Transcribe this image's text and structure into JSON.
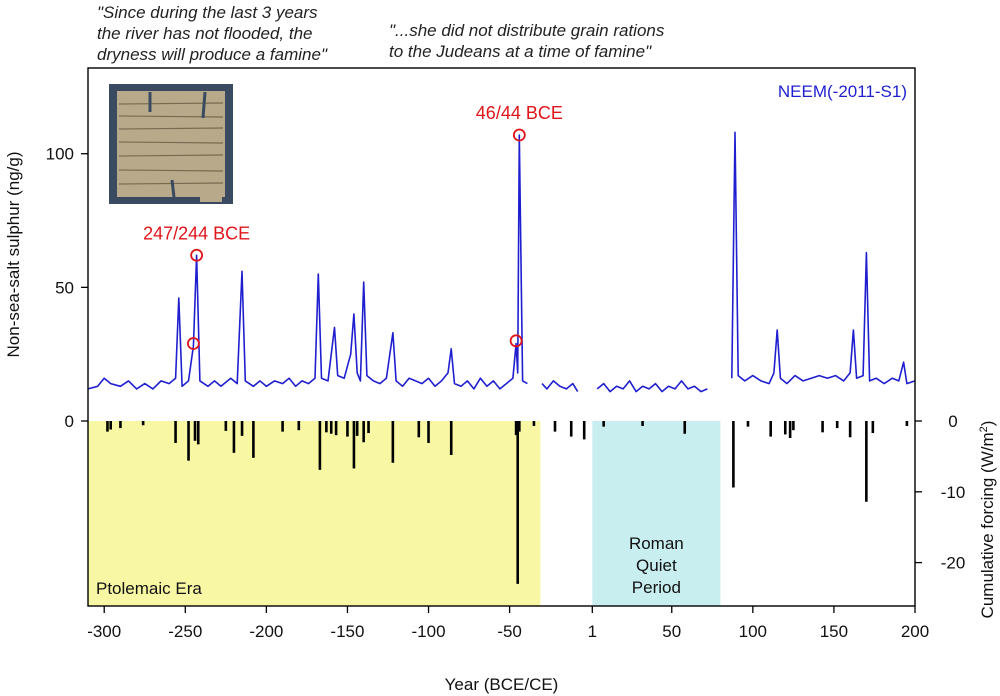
{
  "quotes": {
    "left": "\"Since during the last 3 years\nthe river has not flooded, the\ndryness will produce a famine\"",
    "right": "\"...she did not distribute grain rations\nto the Judeans at a time of famine\""
  },
  "colors": {
    "series": "#1f1fd0",
    "annotation": "#e0151a",
    "ptolemaic": "#f8f7a3",
    "roman": "#c8eef0",
    "forcing": "#000000",
    "papyrus": "#b7a98a"
  },
  "chart_data": [
    {
      "type": "line",
      "ylabel": "Non-sea-salt sulphur (ng/g)",
      "xlabel": "Year (BCE/CE)",
      "legend": "NEEM(-2011-S1)",
      "xlim": [
        -310,
        200
      ],
      "ylim": [
        0,
        128
      ],
      "yticks": [
        0,
        50,
        100
      ],
      "ytick_labels": [
        "0",
        "50",
        "100"
      ],
      "xticks": [
        -300,
        -250,
        -200,
        -150,
        -100,
        -50,
        1,
        50,
        100,
        150,
        200
      ],
      "xtick_labels": [
        "-300",
        "-250",
        "-200",
        "-150",
        "-100",
        "-50",
        "1",
        "50",
        "100",
        "150",
        "200"
      ],
      "gaps": [
        [
          -38,
          -31
        ],
        [
          -5,
          2
        ],
        [
          73,
          86
        ]
      ],
      "series_base": [
        [
          -310,
          12
        ],
        [
          -304,
          13
        ],
        [
          -300,
          16
        ],
        [
          -296,
          14
        ],
        [
          -290,
          13
        ],
        [
          -285,
          15
        ],
        [
          -280,
          12
        ],
        [
          -275,
          14
        ],
        [
          -270,
          12
        ],
        [
          -265,
          15
        ],
        [
          -260,
          14
        ],
        [
          -256,
          16
        ],
        [
          -254,
          46
        ],
        [
          -252,
          13
        ],
        [
          -248,
          15
        ],
        [
          -245,
          28
        ],
        [
          -243,
          62
        ],
        [
          -241,
          15
        ],
        [
          -236,
          13
        ],
        [
          -232,
          15
        ],
        [
          -228,
          13
        ],
        [
          -222,
          16
        ],
        [
          -218,
          14
        ],
        [
          -215,
          56
        ],
        [
          -213,
          15
        ],
        [
          -208,
          13
        ],
        [
          -204,
          15
        ],
        [
          -200,
          13
        ],
        [
          -195,
          15
        ],
        [
          -190,
          14
        ],
        [
          -186,
          16
        ],
        [
          -182,
          13
        ],
        [
          -178,
          15
        ],
        [
          -174,
          14
        ],
        [
          -170,
          16
        ],
        [
          -168,
          55
        ],
        [
          -166,
          16
        ],
        [
          -162,
          15
        ],
        [
          -158,
          35
        ],
        [
          -156,
          17
        ],
        [
          -152,
          16
        ],
        [
          -148,
          25
        ],
        [
          -146,
          40
        ],
        [
          -144,
          18
        ],
        [
          -142,
          15
        ],
        [
          -140,
          52
        ],
        [
          -138,
          17
        ],
        [
          -134,
          15
        ],
        [
          -130,
          14
        ],
        [
          -126,
          16
        ],
        [
          -122,
          33
        ],
        [
          -120,
          15
        ],
        [
          -116,
          13
        ],
        [
          -112,
          16
        ],
        [
          -108,
          15
        ],
        [
          -104,
          14
        ],
        [
          -100,
          16
        ],
        [
          -96,
          13
        ],
        [
          -92,
          15
        ],
        [
          -88,
          18
        ],
        [
          -86,
          27
        ],
        [
          -84,
          14
        ],
        [
          -80,
          13
        ],
        [
          -76,
          15
        ],
        [
          -72,
          12
        ],
        [
          -68,
          16
        ],
        [
          -64,
          13
        ],
        [
          -60,
          15
        ],
        [
          -56,
          12
        ],
        [
          -52,
          14
        ],
        [
          -48,
          16
        ],
        [
          -46,
          29
        ],
        [
          -45,
          18
        ],
        [
          -44,
          107
        ],
        [
          -42,
          15
        ],
        [
          -39,
          14
        ],
        [
          -30,
          14
        ],
        [
          -27,
          12
        ],
        [
          -23,
          15
        ],
        [
          -19,
          13
        ],
        [
          -15,
          12
        ],
        [
          -11,
          14
        ],
        [
          -8,
          11
        ],
        [
          4,
          12
        ],
        [
          8,
          14
        ],
        [
          12,
          11
        ],
        [
          16,
          13
        ],
        [
          20,
          12
        ],
        [
          24,
          15
        ],
        [
          28,
          11
        ],
        [
          32,
          13
        ],
        [
          36,
          12
        ],
        [
          40,
          14
        ],
        [
          44,
          11
        ],
        [
          48,
          13
        ],
        [
          52,
          12
        ],
        [
          56,
          15
        ],
        [
          60,
          12
        ],
        [
          64,
          13
        ],
        [
          68,
          11
        ],
        [
          72,
          12
        ],
        [
          87,
          16
        ],
        [
          89,
          108
        ],
        [
          91,
          17
        ],
        [
          95,
          15
        ],
        [
          100,
          17
        ],
        [
          105,
          15
        ],
        [
          110,
          14
        ],
        [
          113,
          18
        ],
        [
          115,
          34
        ],
        [
          117,
          16
        ],
        [
          121,
          14
        ],
        [
          126,
          17
        ],
        [
          131,
          15
        ],
        [
          136,
          16
        ],
        [
          141,
          17
        ],
        [
          146,
          16
        ],
        [
          151,
          17
        ],
        [
          156,
          15
        ],
        [
          160,
          18
        ],
        [
          162,
          34
        ],
        [
          164,
          16
        ],
        [
          168,
          17
        ],
        [
          170,
          63
        ],
        [
          172,
          15
        ],
        [
          176,
          16
        ],
        [
          181,
          14
        ],
        [
          186,
          16
        ],
        [
          190,
          15
        ],
        [
          193,
          22
        ],
        [
          195,
          14
        ],
        [
          200,
          15
        ]
      ],
      "annotations": [
        {
          "label": "247/244 BCE",
          "x": -243,
          "y": 62
        },
        {
          "label": "",
          "x": -245,
          "y": 29
        },
        {
          "label": "46/44 BCE",
          "x": -44,
          "y": 107
        },
        {
          "label": "",
          "x": -46,
          "y": 30
        }
      ]
    },
    {
      "type": "bar",
      "ylabel": "Cumulative forcing (W/m2)",
      "ylabel_main": "Cumulative forcing (W/m",
      "ylabel_sup": "2",
      "ylabel_end": ")",
      "ylim": [
        -25,
        0
      ],
      "yticks": [
        0,
        -10,
        -20
      ],
      "ytick_labels": [
        "0",
        "-10",
        "-20"
      ],
      "zero_label": "0",
      "spans": [
        {
          "label": "Ptolemaic Era",
          "from": -310,
          "to": -31
        },
        {
          "label": "Roman\nQuiet\nPeriod",
          "from": 1,
          "to": 80
        }
      ],
      "x": [
        -298,
        -296,
        -290,
        -276,
        -256,
        -248,
        -244,
        -242,
        -225,
        -220,
        -215,
        -208,
        -190,
        -180,
        -167,
        -163,
        -160,
        -157,
        -150,
        -146,
        -144,
        -140,
        -137,
        -122,
        -106,
        -100,
        -86,
        -46,
        -45,
        -44,
        -35,
        -22,
        -12,
        -4,
        8,
        32,
        58,
        88,
        97,
        111,
        120,
        123,
        125,
        143,
        152,
        160,
        170,
        174,
        195
      ],
      "values": [
        -1.5,
        -1.2,
        -1,
        -0.6,
        -3.1,
        -5.6,
        -2.8,
        -3.3,
        -1.4,
        -4.5,
        -2.1,
        -5.2,
        -1.5,
        -1.3,
        -6.9,
        -1.6,
        -1.8,
        -2,
        -2.2,
        -6.7,
        -2.1,
        -3,
        -1.7,
        -5.9,
        -2.3,
        -3.1,
        -4.8,
        -2,
        -23,
        -1.5,
        -0.7,
        -1.5,
        -2.2,
        -2.6,
        -0.8,
        -0.7,
        -1.8,
        -9.4,
        -0.8,
        -2.2,
        -1.9,
        -2.4,
        -1.3,
        -1.6,
        -1,
        -2.3,
        -11.4,
        -1.7,
        -0.7
      ]
    }
  ]
}
